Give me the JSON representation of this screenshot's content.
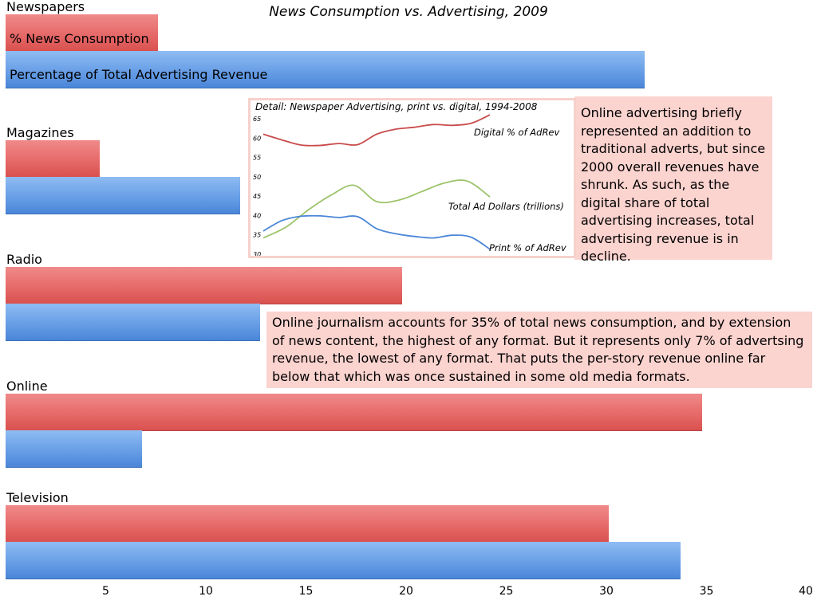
{
  "chart_data": {
    "type": "bar",
    "title": "News Consumption vs. Advertising, 2009",
    "orientation": "horizontal",
    "categories": [
      "Newspapers",
      "Magazines",
      "Radio",
      "Online",
      "Television"
    ],
    "series": [
      {
        "name": "% News Consumption",
        "color": "#e8706f",
        "values": [
          7.6,
          4.7,
          19.8,
          34.8,
          30.1
        ]
      },
      {
        "name": "Percentage of Total Advertising Revenue",
        "color": "#6fa4e9",
        "values": [
          31.9,
          11.7,
          12.7,
          6.8,
          33.7
        ]
      }
    ],
    "xlim": [
      0,
      40
    ],
    "xticks": [
      "5",
      "10",
      "15",
      "20",
      "25",
      "30",
      "35",
      "40"
    ],
    "xlabel": "",
    "ylabel": "",
    "inset": {
      "type": "line",
      "title": "Detail: Newspaper Advertising, print vs. digital, 1994-2008",
      "ylim": [
        30,
        65
      ],
      "yticks": [
        "30",
        "35",
        "40",
        "45",
        "50",
        "55",
        "60",
        "65"
      ],
      "series": [
        {
          "name": "Digital % of AdRev",
          "color": "#c94b4b",
          "values": [
            61,
            59.5,
            58.2,
            58.1,
            58.6,
            58.3,
            61,
            62.3,
            62.8,
            63.5,
            63.3,
            63.8,
            66
          ]
        },
        {
          "name": "Total Ad Dollars (trillions)",
          "color": "#9cc36a",
          "values": [
            34.2,
            37,
            41.5,
            45.3,
            47.8,
            43.6,
            44,
            46.2,
            48.4,
            48.9,
            44.8
          ]
        },
        {
          "name": "Print % of AdRev",
          "color": "#4a86d8",
          "values": [
            36,
            38.7,
            39.8,
            39.9,
            39.5,
            39.7,
            36.6,
            35.3,
            34.6,
            34.2,
            34.9,
            34.4,
            31.3
          ]
        }
      ]
    }
  },
  "notes": {
    "digital": "Online advertising briefly represented an addition to traditional adverts, but since 2000 overall revenues have shrunk. As such, as the digital share of total advertising increases, total advertising revenue is in decline.",
    "online": "Online journalism accounts for 35% of total news consumption, and by extension of news content, the highest of any format. But it represents only 7% of advertsing revenue, the lowest of any format. That puts the per-story revenue online far below that which was once sustained in some old media formats."
  }
}
